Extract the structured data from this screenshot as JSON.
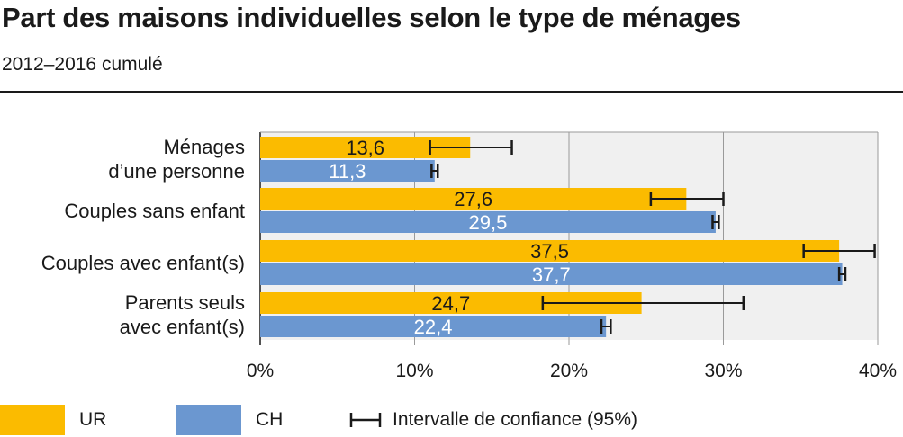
{
  "header": {
    "title": "Part des maisons individuelles selon le type de ménages",
    "subtitle": "2012–2016 cumulé"
  },
  "colors": {
    "UR": "#fbbb00",
    "CH": "#6b97d0",
    "plot_bg": "#f0f0f0",
    "grid": "#9a9a9a",
    "axis": "#1a1a1a",
    "ci": "#1a1a1a"
  },
  "legend": {
    "ur_label": "UR",
    "ch_label": "CH",
    "ci_label": "Intervalle de confiance (95%)"
  },
  "chart_data": {
    "type": "bar",
    "orientation": "horizontal",
    "title": "Part des maisons individuelles selon le type de ménages",
    "subtitle": "2012–2016 cumulé",
    "categories": [
      [
        "Ménages",
        "d’une personne"
      ],
      [
        "Couples sans enfant"
      ],
      [
        "Couples avec enfant(s)"
      ],
      [
        "Parents seuls",
        "avec enfant(s)"
      ]
    ],
    "series": [
      {
        "name": "UR",
        "values": [
          13.6,
          27.6,
          37.5,
          24.7
        ],
        "labels": [
          "13,6",
          "27,6",
          "37,5",
          "24,7"
        ],
        "ci": [
          [
            11.0,
            16.3
          ],
          [
            25.3,
            30.0
          ],
          [
            35.2,
            39.8
          ],
          [
            18.3,
            31.3
          ]
        ]
      },
      {
        "name": "CH",
        "values": [
          11.3,
          29.5,
          37.7,
          22.4
        ],
        "labels": [
          "11,3",
          "29,5",
          "37,7",
          "22,4"
        ],
        "ci": [
          [
            11.1,
            11.5
          ],
          [
            29.3,
            29.7
          ],
          [
            37.5,
            37.9
          ],
          [
            22.1,
            22.7
          ]
        ]
      }
    ],
    "xlim": [
      0,
      40
    ],
    "xticks": [
      0,
      10,
      20,
      30,
      40
    ],
    "xtick_labels": [
      "0%",
      "10%",
      "20%",
      "30%",
      "40%"
    ],
    "grid": true,
    "legend_position": "bottom"
  }
}
